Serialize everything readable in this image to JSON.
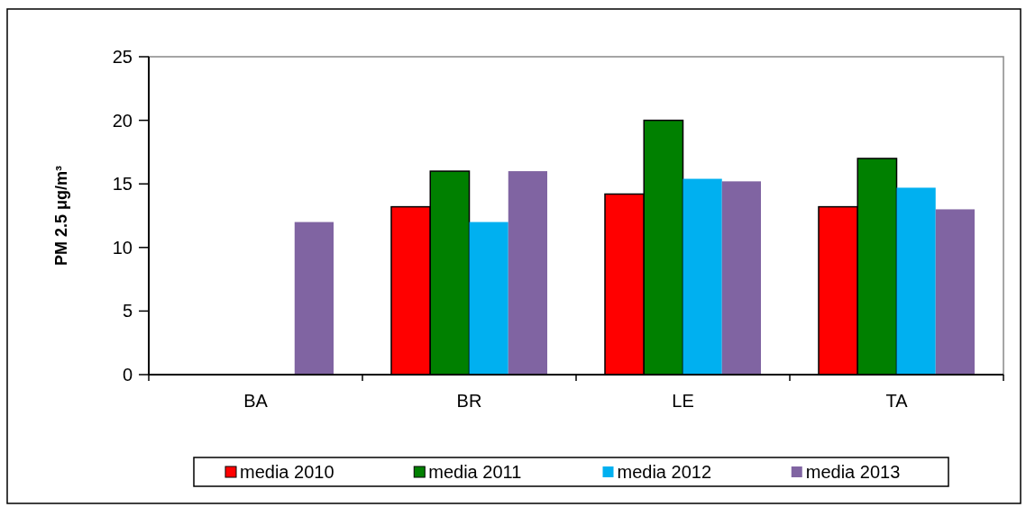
{
  "chart_data": {
    "type": "bar",
    "ylabel": "PM 2.5 μg/m³",
    "categories": [
      "BA",
      "BR",
      "LE",
      "TA"
    ],
    "series": [
      {
        "name": "media 2010",
        "color": "#ff0000",
        "values": [
          null,
          13.2,
          14.2,
          13.2
        ]
      },
      {
        "name": "media 2011",
        "color": "#008000",
        "values": [
          null,
          16,
          20,
          17
        ]
      },
      {
        "name": "media 2012",
        "color": "#00b0f0",
        "values": [
          null,
          12,
          15.4,
          14.7
        ]
      },
      {
        "name": "media 2013",
        "color": "#8064a2",
        "values": [
          12,
          16,
          15.2,
          13
        ]
      }
    ],
    "ylim": [
      0,
      25
    ],
    "yticks": [
      0,
      5,
      10,
      15,
      20,
      25
    ],
    "grid": false,
    "legend": "bottom"
  }
}
